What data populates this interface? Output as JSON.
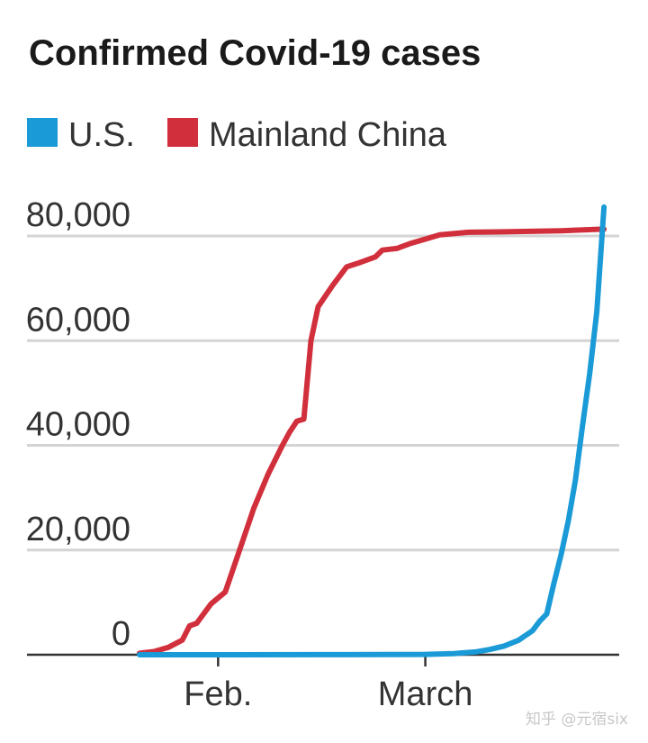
{
  "chart_data": {
    "type": "line",
    "title": "Confirmed Covid-19 cases",
    "xlabel": "",
    "ylabel": "",
    "ylim": [
      0,
      80000
    ],
    "yticks": [
      0,
      20000,
      40000,
      60000,
      80000
    ],
    "ytick_labels": [
      "0",
      "20,000",
      "40,000",
      "60,000",
      "80,000"
    ],
    "xlim": [
      "2020-01-21",
      "2020-03-27"
    ],
    "xticks": [
      "2020-02-01",
      "2020-03-01"
    ],
    "xtick_labels": [
      "Feb.",
      "March"
    ],
    "grid": true,
    "legend_position": "top-left",
    "series": [
      {
        "name": "U.S.",
        "color": "#1a9ad6",
        "points": [
          [
            "2020-01-21",
            1
          ],
          [
            "2020-02-01",
            8
          ],
          [
            "2020-02-15",
            15
          ],
          [
            "2020-03-01",
            75
          ],
          [
            "2020-03-05",
            230
          ],
          [
            "2020-03-08",
            540
          ],
          [
            "2020-03-10",
            1000
          ],
          [
            "2020-03-12",
            1660
          ],
          [
            "2020-03-14",
            2730
          ],
          [
            "2020-03-16",
            4600
          ],
          [
            "2020-03-17",
            6400
          ],
          [
            "2020-03-18",
            7800
          ],
          [
            "2020-03-19",
            13700
          ],
          [
            "2020-03-20",
            19100
          ],
          [
            "2020-03-21",
            25500
          ],
          [
            "2020-03-22",
            33300
          ],
          [
            "2020-03-23",
            43700
          ],
          [
            "2020-03-24",
            53700
          ],
          [
            "2020-03-25",
            65500
          ],
          [
            "2020-03-26",
            85500
          ]
        ]
      },
      {
        "name": "Mainland China",
        "color": "#d12f3c",
        "points": [
          [
            "2020-01-21",
            300
          ],
          [
            "2020-01-23",
            600
          ],
          [
            "2020-01-25",
            1400
          ],
          [
            "2020-01-27",
            2800
          ],
          [
            "2020-01-28",
            5500
          ],
          [
            "2020-01-29",
            6000
          ],
          [
            "2020-01-31",
            9700
          ],
          [
            "2020-02-02",
            12000
          ],
          [
            "2020-02-04",
            20000
          ],
          [
            "2020-02-06",
            28000
          ],
          [
            "2020-02-08",
            34500
          ],
          [
            "2020-02-10",
            40000
          ],
          [
            "2020-02-11",
            42500
          ],
          [
            "2020-02-12",
            44600
          ],
          [
            "2020-02-13",
            45000
          ],
          [
            "2020-02-14",
            60000
          ],
          [
            "2020-02-15",
            66500
          ],
          [
            "2020-02-17",
            70500
          ],
          [
            "2020-02-19",
            74100
          ],
          [
            "2020-02-21",
            75000
          ],
          [
            "2020-02-23",
            76000
          ],
          [
            "2020-02-24",
            77300
          ],
          [
            "2020-02-26",
            77600
          ],
          [
            "2020-02-28",
            78600
          ],
          [
            "2020-03-01",
            79400
          ],
          [
            "2020-03-03",
            80200
          ],
          [
            "2020-03-07",
            80700
          ],
          [
            "2020-03-12",
            80800
          ],
          [
            "2020-03-20",
            81000
          ],
          [
            "2020-03-26",
            81300
          ]
        ]
      }
    ]
  },
  "watermark": "知乎 @元宿six"
}
